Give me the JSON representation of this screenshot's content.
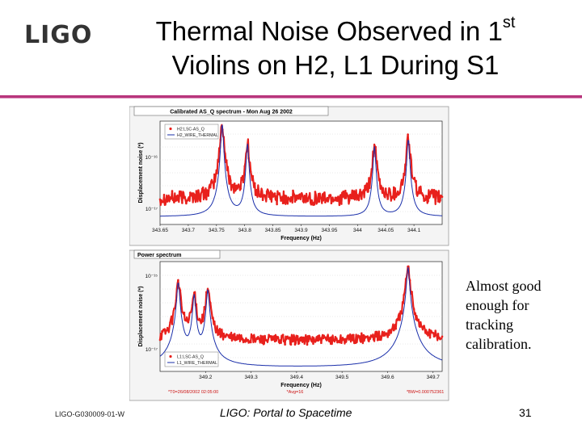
{
  "logo": "LIGO",
  "title": {
    "line1": "Thermal Noise Observed in 1",
    "line1_sup": "st",
    "line2": "Violins on H2, L1 During S1"
  },
  "side_note": "Almost good enough for tracking calibration.",
  "footer": {
    "doc_id": "LIGO-G030009-01-W",
    "tagline": "LIGO: Portal to Spacetime",
    "page_number": "31"
  },
  "colors": {
    "data": "#e8201c",
    "model": "#1a2faa",
    "accent_rule": "#b8357c"
  },
  "chart_data": [
    {
      "type": "line",
      "title": "Calibrated AS_Q spectrum - Mon Aug 26 2002",
      "xlabel": "Frequency (Hz)",
      "ylabel": "Displacement noise (*)",
      "xlim": [
        343.65,
        344.15
      ],
      "x_ticks": [
        "343.65",
        "343.7",
        "343.75",
        "343.8",
        "343.85",
        "343.9",
        "343.95",
        "344",
        "344.05",
        "344.1"
      ],
      "y_ticks": [
        "10⁻¹⁶",
        "10⁻¹⁷"
      ],
      "y_exp_range": [
        -17.3,
        -15.3
      ],
      "legend": [
        "H2:LSC-AS_Q",
        "H2_WIRE_THERMAL"
      ],
      "legend_position": "top-left",
      "peaks": [
        {
          "x": 343.76,
          "height": 1.45
        },
        {
          "x": 343.805,
          "height": 1.05
        },
        {
          "x": 344.03,
          "height": 1.0
        },
        {
          "x": 344.09,
          "height": 1.15
        }
      ],
      "data_floor_exp": -16.8,
      "model_floor_exp": -17.15
    },
    {
      "type": "line",
      "title": "Power spectrum",
      "xlabel": "Frequency (Hz)",
      "ylabel": "Displacement noise (*)",
      "xlim": [
        349.1,
        349.72
      ],
      "x_ticks": [
        "349.2",
        "349.3",
        "349.4",
        "349.5",
        "349.6",
        "349.7"
      ],
      "y_ticks": [
        "10⁻¹⁵",
        "10⁻¹⁷"
      ],
      "y_exp_range": [
        -17.6,
        -14.6
      ],
      "legend": [
        "L1:LSC-AS_Q",
        "L1_WIRE_THERMAL"
      ],
      "legend_position": "bottom-left",
      "peaks": [
        {
          "x": 349.14,
          "height": 1.6
        },
        {
          "x": 349.175,
          "height": 1.25
        },
        {
          "x": 349.205,
          "height": 1.4
        },
        {
          "x": 349.645,
          "height": 2.0
        }
      ],
      "data_floor_exp": -16.75,
      "model_floor_exp": -17.5,
      "annotations": [
        "*T0=26/08/2002 02:05:00",
        "*Avg=16",
        "*BW=0.000752361"
      ]
    }
  ]
}
